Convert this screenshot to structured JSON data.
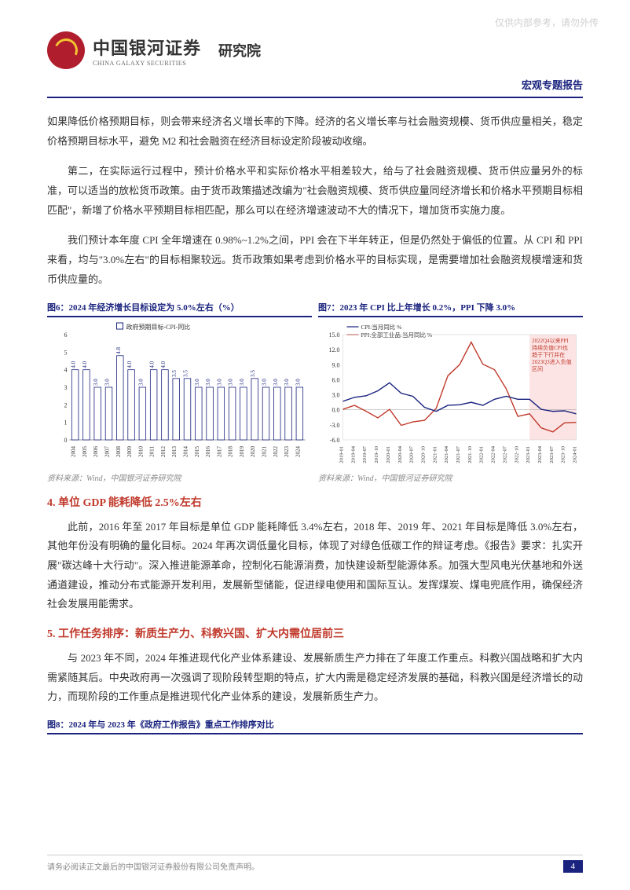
{
  "watermark": "仅供内部参考，请勿外传",
  "brand": {
    "cn": "中国银河证券",
    "en": "CHINA GALAXY SECURITIES",
    "dept": "研究院",
    "logo_bg": "#b01e2e",
    "logo_ring": "#f4c430"
  },
  "category": "宏观专题报告",
  "divider_color": "#1a237e",
  "paragraphs": {
    "p1": "如果降低价格预期目标，则会带来经济名义增长率的下降。经济的名义增长率与社会融资规模、货币供应量相关，稳定价格预期目标水平，避免 M2 和社会融资在经济目标设定阶段被动收缩。",
    "p2": "第二，在实际运行过程中，预计价格水平和实际价格水平相差较大，给与了社会融资规模、货币供应量另外的标准，可以适当的放松货币政策。由于货币政策描述改编为\"社会融资规模、货币供应量同经济增长和价格水平预期目标相匹配\"，新增了价格水平预期目标相匹配，那么可以在经济增速波动不大的情况下，增加货币实施力度。",
    "p3": "我们预计本年度 CPI 全年增速在 0.98%~1.2%之间，PPI 会在下半年转正，但是仍然处于偏低的位置。从 CPI 和 PPI 来看，均与\"3.0%左右\"的目标相聚较远。货币政策如果考虑到价格水平的目标实现，是需要增加社会融资规模增速和货币供应量的。",
    "p4": "此前，2016 年至 2017 年目标是单位 GDP 能耗降低 3.4%左右，2018 年、2019 年、2021 年目标是降低 3.0%左右，其他年份没有明确的量化目标。2024 年再次调低量化目标，体现了对绿色低碳工作的辩证考虑。《报告》要求：扎实开展\"碳达峰十大行动\"。深入推进能源革命，控制化石能源消费，加快建设新型能源体系。加强大型风电光伏基地和外送通道建设，推动分布式能源开发利用，发展新型储能，促进绿电使用和国际互认。发挥煤炭、煤电兜底作用，确保经济社会发展用能需求。",
    "p5": "与 2023 年不同，2024 年推进现代化产业体系建设、发展新质生产力排在了年度工作重点。科教兴国战略和扩大内需紧随其后。中央政府再一次强调了现阶段转型期的特点，扩大内需是稳定经济发展的基础，科教兴国是经济增长的动力，而现阶段的工作重点是推进现代化产业体系的建设，发展新质生产力。"
  },
  "sections": {
    "s4": "4. 单位 GDP 能耗降低 2.5%左右",
    "s5": "5. 工作任务排序：新质生产力、科教兴国、扩大内需位居前三"
  },
  "chart6": {
    "title": "图6：2024 年经济增长目标设定为 5.0%左右（%）",
    "legend": "政府预期目标-CPI-同比",
    "type": "bar",
    "categories": [
      "2004",
      "2005",
      "2006",
      "2007",
      "2008",
      "2009",
      "2010",
      "2011",
      "2012",
      "2013",
      "2014",
      "2015",
      "2016",
      "2017",
      "2018",
      "2019",
      "2020",
      "2021",
      "2022",
      "2023",
      "2024"
    ],
    "values": [
      4.0,
      4.0,
      3.0,
      3.0,
      4.8,
      4.0,
      3.0,
      4.0,
      4.0,
      3.5,
      3.5,
      3.0,
      3.0,
      3.0,
      3.0,
      3.0,
      3.5,
      3.0,
      3.0,
      3.0,
      3.0
    ],
    "ylim": [
      0,
      6
    ],
    "ytick_step": 1,
    "bar_color": "#ffffff",
    "bar_border": "#1a237e",
    "label_color": "#1a237e",
    "bg": "#ffffff",
    "source": "资料来源：Wind，中国银河证券研究院"
  },
  "chart7": {
    "title": "图7：2023 年 CPI 比上年增长 0.2%，PPI 下降 3.0%",
    "legend_cpi": "CPI:当月同比 %",
    "legend_ppi": "PPI:全部工业品:当月同比 %",
    "annotation": "2022Q4以来PPI持续负值CPI也趋于下行并在2023Q3进入负值区间",
    "type": "line",
    "x_labels": [
      "2019-01",
      "2019-04",
      "2019-07",
      "2019-10",
      "2020-01",
      "2020-04",
      "2020-07",
      "2020-10",
      "2021-01",
      "2021-04",
      "2021-07",
      "2021-10",
      "2022-01",
      "2022-04",
      "2022-07",
      "2022-10",
      "2023-01",
      "2023-04",
      "2023-07",
      "2023-10",
      "2024-01"
    ],
    "cpi": [
      1.7,
      2.5,
      2.8,
      3.8,
      5.4,
      3.3,
      2.7,
      0.5,
      -0.3,
      0.9,
      1.0,
      1.5,
      0.9,
      2.1,
      2.7,
      2.1,
      2.1,
      0.1,
      -0.3,
      -0.2,
      -0.8
    ],
    "ppi": [
      0.1,
      0.9,
      -0.3,
      -1.6,
      0.1,
      -3.1,
      -2.4,
      -2.1,
      0.3,
      6.8,
      9.0,
      13.5,
      9.1,
      8.0,
      4.2,
      -1.3,
      -0.8,
      -3.6,
      -4.4,
      -2.6,
      -2.5
    ],
    "ylim": [
      -6,
      15
    ],
    "ytick_step": 3,
    "cpi_color": "#1a237e",
    "ppi_color": "#c0392b",
    "shade_x_start": 16,
    "shade_x_end": 20,
    "shade_color": "#fce4e4",
    "annotation_color": "#c0392b",
    "bg": "#ffffff",
    "source": "资料来源：Wind，中国银河证券研究院"
  },
  "fig8_title": "图8：2024 年与 2023 年《政府工作报告》重点工作排序对比",
  "footer": {
    "disclaimer": "请务必阅读正文最后的中国银河证券股份有限公司免责声明。",
    "page": "4"
  }
}
